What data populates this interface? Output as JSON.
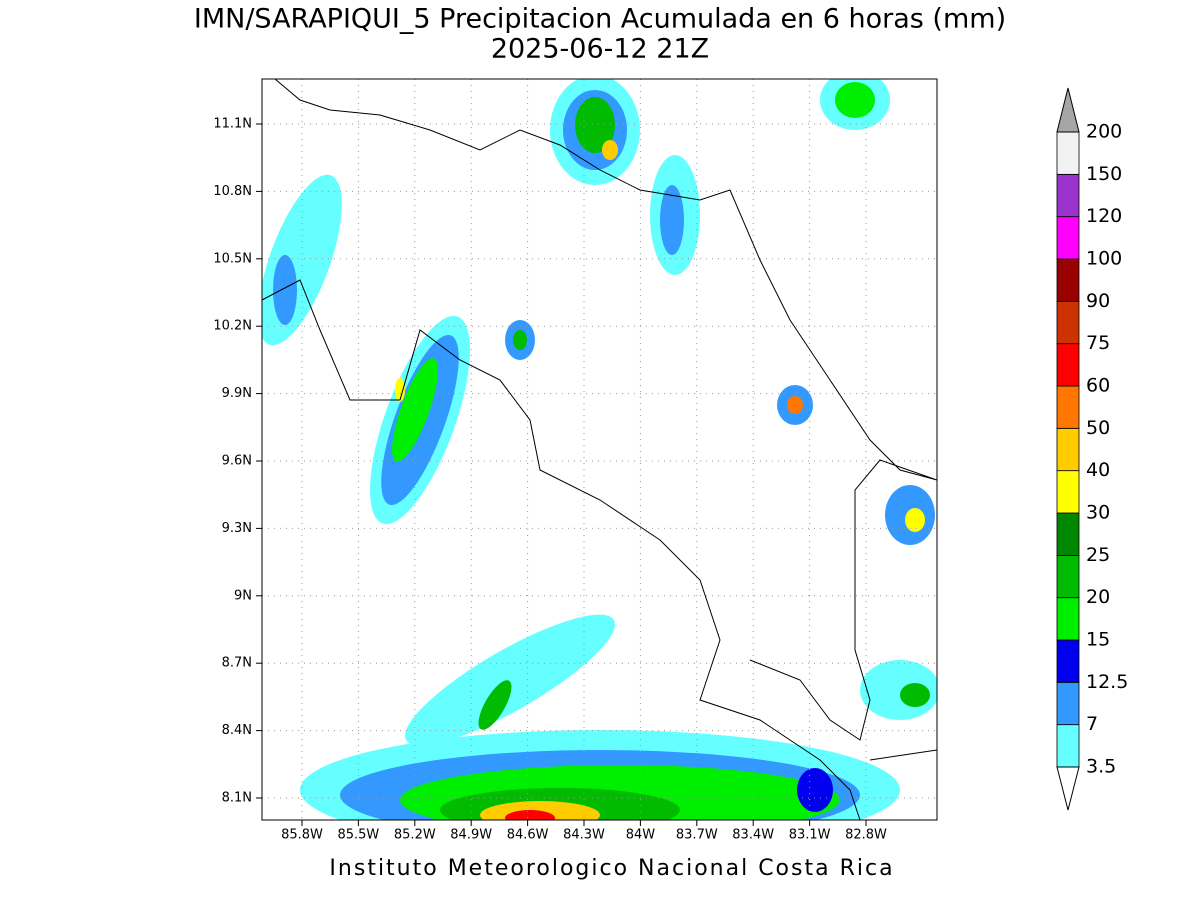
{
  "header": {
    "title": "IMN/SARAPIQUI_5 Precipitacion Acumulada en 6 horas (mm)",
    "subtitle": "2025-06-12 21Z"
  },
  "map": {
    "lat_labels": [
      "11.1N",
      "10.8N",
      "10.5N",
      "10.2N",
      "9.9N",
      "9.6N",
      "9.3N",
      "9N",
      "8.7N",
      "8.4N",
      "8.1N"
    ],
    "lon_labels": [
      "85.8W",
      "85.5W",
      "85.2W",
      "84.9W",
      "84.6W",
      "84.3W",
      "84W",
      "83.7W",
      "83.4W",
      "83.1W",
      "82.8W"
    ]
  },
  "colorbar": {
    "levels": [
      3.5,
      7,
      12.5,
      15,
      20,
      25,
      30,
      40,
      50,
      60,
      75,
      90,
      100,
      120,
      150,
      200
    ],
    "colors": [
      "#66ffff",
      "#3399ff",
      "#0000ee",
      "#00ee00",
      "#00bb00",
      "#008800",
      "#ffff00",
      "#ffcc00",
      "#ff7700",
      "#ff0000",
      "#cc3300",
      "#990000",
      "#ff00ff",
      "#9933cc",
      "#f2f2f2"
    ],
    "over_color": "#a6a6a6",
    "under_color": "#ffffff"
  },
  "footer": {
    "credit": "Instituto Meteorologico Nacional Costa Rica"
  }
}
